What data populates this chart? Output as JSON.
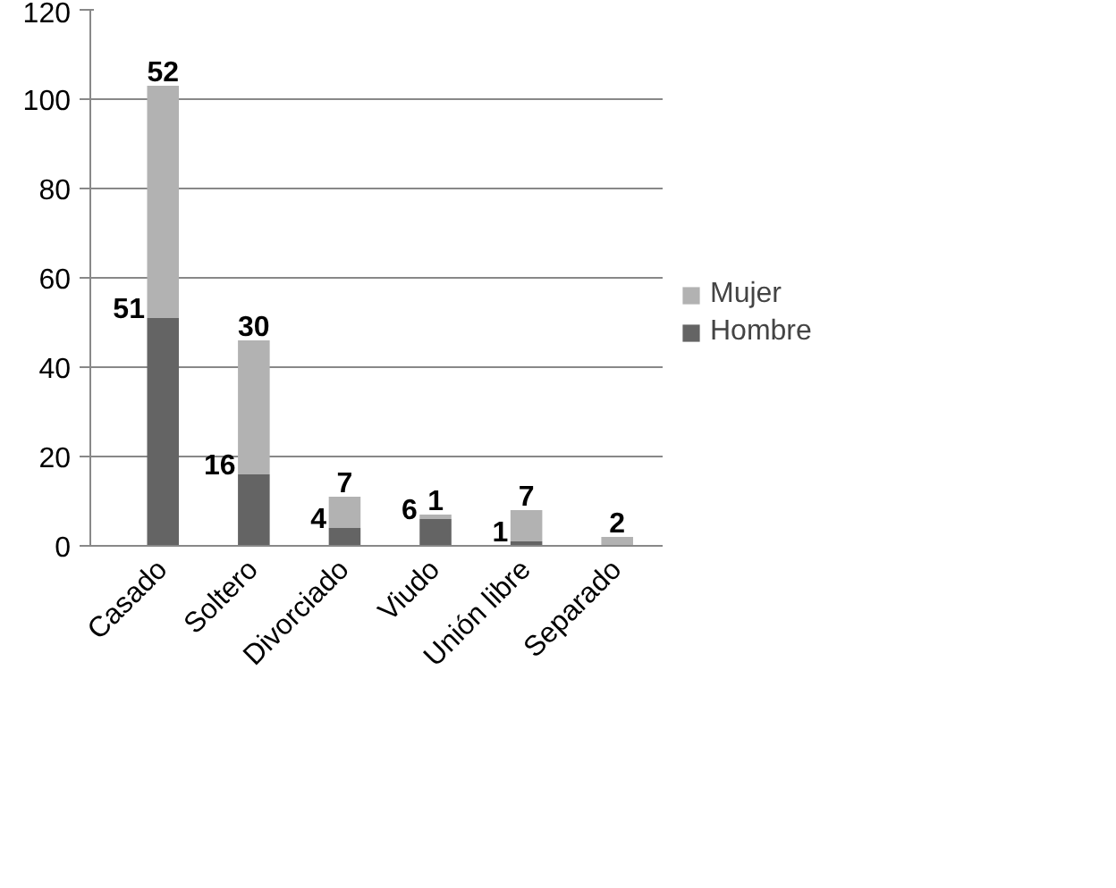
{
  "chart_data": {
    "type": "bar",
    "stacked": true,
    "categories": [
      "Casado",
      "Soltero",
      "Divorciado",
      "Viudo",
      "Unión libre",
      "Separado"
    ],
    "series": [
      {
        "name": "Hombre",
        "color": "#646464",
        "values": [
          51,
          16,
          4,
          6,
          1,
          0
        ],
        "value_labels": [
          "51",
          "16",
          "4",
          "6",
          "1",
          null
        ]
      },
      {
        "name": "Mujer",
        "color": "#b2b2b2",
        "values": [
          52,
          30,
          7,
          1,
          7,
          2
        ],
        "value_labels": [
          "52",
          "30",
          "7",
          "1",
          "7",
          "2"
        ]
      }
    ],
    "ylim": [
      0,
      120
    ],
    "yticks": [
      0,
      20,
      40,
      60,
      80,
      100,
      120
    ],
    "grid": "y",
    "legend": "right"
  }
}
